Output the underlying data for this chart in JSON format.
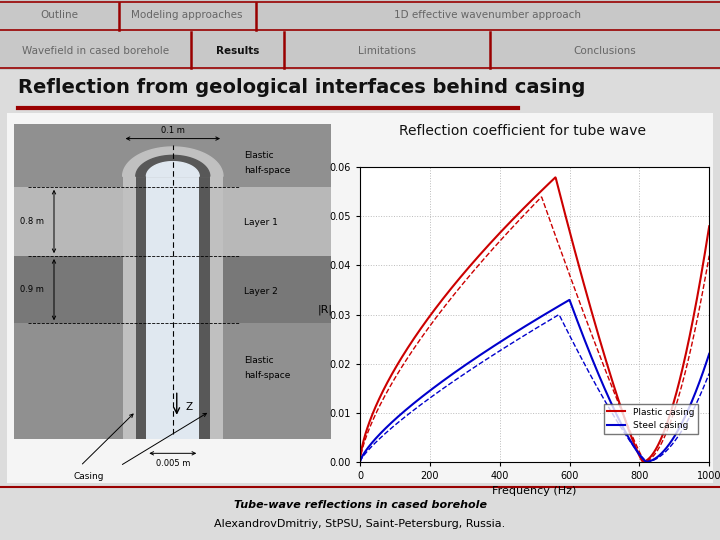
{
  "slide_bg": "#dcdcdc",
  "header_bg": "#c8c8c8",
  "red_bar_color": "#990000",
  "nav_fontsize": 7.5,
  "title_text": "Reflection from geological interfaces behind casing",
  "title_fontsize": 14,
  "subtitle_text": "Reflection coefficient for tube wave",
  "subtitle_fontsize": 10,
  "footer_line1": "Tube-wave reflections in cased borehole",
  "footer_line2": "AlexandrovDmitriy, StPSU, Saint-Petersburg, Russia.",
  "footer_fontsize": 8,
  "plot_xlim": [
    0,
    1000
  ],
  "plot_ylim": [
    0,
    0.06
  ],
  "plot_yticks": [
    0,
    0.01,
    0.02,
    0.03,
    0.04,
    0.05,
    0.06
  ],
  "plot_xticks": [
    0,
    200,
    400,
    600,
    800,
    1000
  ],
  "plot_xlabel": "Frequency (Hz)",
  "plot_ylabel": "|R|",
  "plastic_color": "#cc0000",
  "steel_color": "#0000cc",
  "grid_color": "#bbbbbb",
  "row1_items": [
    "Outline",
    "Modeling approaches",
    "1D effective wavenumber approach"
  ],
  "row1_splits": [
    0.0,
    0.165,
    0.355,
    1.0
  ],
  "row2_items": [
    "Wavefield in cased borehole",
    "Results",
    "Limitations",
    "Conclusions"
  ],
  "row2_splits": [
    0.0,
    0.265,
    0.395,
    0.68,
    1.0
  ],
  "active_item": "Results"
}
